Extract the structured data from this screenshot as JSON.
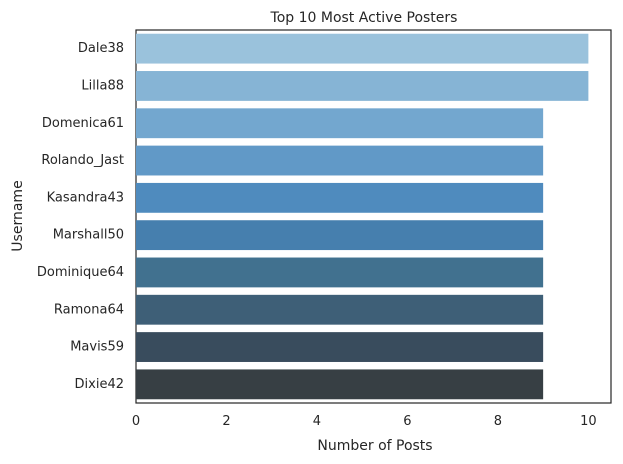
{
  "chart_data": {
    "type": "bar",
    "orientation": "horizontal",
    "title": "Top 10 Most Active Posters",
    "xlabel": "Number of Posts",
    "ylabel": "Username",
    "categories": [
      "Dale38",
      "Lilla88",
      "Domenica61",
      "Rolando_Jast",
      "Kasandra43",
      "Marshall50",
      "Dominique64",
      "Ramona64",
      "Mavis59",
      "Dixie42"
    ],
    "values": [
      10,
      10,
      9,
      9,
      9,
      9,
      9,
      9,
      9,
      9
    ],
    "xlim": [
      0,
      10.5
    ],
    "xticks": [
      0,
      2,
      4,
      6,
      8,
      10
    ],
    "colors": [
      "#9ac2dc",
      "#86b4d5",
      "#73a7cf",
      "#6199c7",
      "#4f8bbe",
      "#467fae",
      "#41718f",
      "#3e5f77",
      "#394c5d",
      "#373f44"
    ],
    "grid": false
  }
}
